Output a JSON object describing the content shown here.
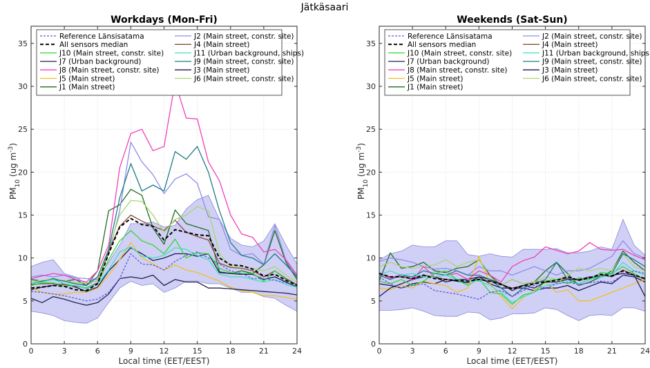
{
  "figure_title": "Jätkäsaari",
  "colors": {
    "reference": "#5b5bd6",
    "median": "#000000",
    "band": "#c8c8f4",
    "band_edge": "#8888dd",
    "J1": "#1f6b1f",
    "J2": "#8c8ce6",
    "J3": "#161650",
    "J4": "#8b4a3a",
    "J5": "#f0c020",
    "J6": "#a6d86a",
    "J7": "#20204a",
    "J8": "#f040b8",
    "J9": "#1d7a86",
    "J10": "#30d830",
    "J11": "#40e0c0"
  },
  "legend": {
    "left": [
      "Reference Länsisatama",
      "All sensors median",
      "J10 (Main street, constr. site)",
      "J7 (Urban background)",
      "J8 (Main street, constr. site)",
      "J5 (Main street)",
      "J1 (Main street)"
    ],
    "right": [
      "J2 (Main street, constr. site)",
      "J4 (Main street)",
      "J11 (Urban background, ships)",
      "J9 (Main street, constr. site)",
      "J3 (Main street)",
      "J6 (Main street, constr. site)"
    ]
  },
  "chart_data": [
    {
      "type": "line",
      "title": "Workdays (Mon-Fri)",
      "xlabel": "Local time (EET/EEST)",
      "ylabel": "PM10 (ug m-3)",
      "ylabel_main": "PM",
      "ylabel_sub": "10",
      "ylabel_unit": " (ug m",
      "ylabel_sup": "-3",
      "ylabel_close": ")",
      "xlim": [
        0,
        24
      ],
      "ylim": [
        0,
        37
      ],
      "xticks": [
        "0",
        "3",
        "6",
        "9",
        "12",
        "15",
        "18",
        "21",
        "24"
      ],
      "yticks": [
        "0",
        "5",
        "10",
        "15",
        "20",
        "25",
        "30",
        "35"
      ],
      "x": [
        0,
        1,
        2,
        3,
        4,
        5,
        6,
        7,
        8,
        9,
        10,
        11,
        12,
        13,
        14,
        15,
        16,
        17,
        18,
        19,
        20,
        21,
        22,
        23,
        24
      ],
      "band_lower": [
        3.8,
        3.6,
        3.3,
        2.7,
        2.5,
        2.4,
        3.0,
        4.8,
        6.5,
        7.3,
        6.8,
        7.0,
        6.0,
        6.5,
        7.3,
        7.3,
        7.0,
        7.0,
        6.5,
        6.0,
        6.0,
        5.5,
        5.3,
        4.5,
        3.8
      ],
      "band_upper": [
        9.0,
        9.5,
        9.8,
        8.2,
        7.8,
        7.0,
        7.8,
        9.5,
        11.5,
        14.0,
        14.0,
        14.2,
        13.6,
        13.8,
        15.7,
        16.8,
        17.3,
        14.5,
        12.3,
        11.5,
        11.3,
        12.0,
        14.0,
        11.5,
        9.3
      ],
      "series": [
        {
          "name": "Reference Länsisatama",
          "key": "reference",
          "dash": true,
          "values": [
            6.1,
            6.0,
            5.8,
            5.6,
            5.3,
            5.0,
            5.2,
            6.0,
            7.6,
            10.5,
            9.3,
            9.2,
            8.6,
            9.6,
            10.3,
            10.7,
            10.0,
            9.3,
            8.5,
            8.2,
            7.6,
            7.6,
            7.4,
            7.1,
            6.7
          ]
        },
        {
          "name": "All sensors median",
          "key": "median",
          "dash": true,
          "bold": true,
          "values": [
            6.5,
            6.6,
            6.8,
            6.7,
            6.3,
            6.2,
            7.0,
            10.5,
            13.6,
            14.6,
            13.9,
            13.7,
            12.1,
            13.3,
            13.0,
            12.7,
            12.6,
            10.0,
            9.2,
            9.1,
            8.7,
            7.9,
            8.1,
            7.4,
            6.8
          ]
        },
        {
          "name": "J1 (Main street)",
          "key": "J1",
          "values": [
            7.5,
            7.3,
            7.6,
            7.3,
            7.5,
            6.8,
            8.5,
            15.5,
            16.2,
            18.0,
            17.3,
            13.5,
            11.6,
            15.6,
            14.0,
            13.6,
            13.2,
            8.4,
            8.2,
            8.5,
            8.2,
            9.2,
            13.2,
            9.5,
            7.5
          ]
        },
        {
          "name": "J2 (Main street, constr. site)",
          "key": "J2",
          "values": [
            7.8,
            8.0,
            7.8,
            8.0,
            7.7,
            7.6,
            7.5,
            10.5,
            15.5,
            23.5,
            21.2,
            19.7,
            17.5,
            19.2,
            19.8,
            18.7,
            14.8,
            14.5,
            11.0,
            10.3,
            10.5,
            9.3,
            13.8,
            9.7,
            7.8
          ]
        },
        {
          "name": "J3 (Main street)",
          "key": "J3",
          "values": [
            6.3,
            6.6,
            6.8,
            7.0,
            6.6,
            6.1,
            6.6,
            8.5,
            9.8,
            11.2,
            10.5,
            9.7,
            10.0,
            10.5,
            10.5,
            10.2,
            10.5,
            8.3,
            8.2,
            8.1,
            8.1,
            7.5,
            7.8,
            7.2,
            6.6
          ]
        },
        {
          "name": "J4 (Main street)",
          "key": "J4",
          "values": [
            6.9,
            7.0,
            7.0,
            6.9,
            6.7,
            6.5,
            7.1,
            10.8,
            13.7,
            15.0,
            14.3,
            13.7,
            13.2,
            14.4,
            13.0,
            12.5,
            12.1,
            9.4,
            8.9,
            8.8,
            8.5,
            7.8,
            8.5,
            7.6,
            6.9
          ]
        },
        {
          "name": "J5 (Main street)",
          "key": "J5",
          "values": [
            6.6,
            6.0,
            5.8,
            5.8,
            6.0,
            6.0,
            6.5,
            8.0,
            9.8,
            11.8,
            10.0,
            9.3,
            8.6,
            9.2,
            8.6,
            8.3,
            7.8,
            7.3,
            6.6,
            6.2,
            6.0,
            5.6,
            5.6,
            5.4,
            5.2
          ]
        },
        {
          "name": "J6 (Main street, constr. site)",
          "key": "J6",
          "values": [
            7.2,
            7.4,
            7.5,
            7.4,
            7.1,
            7.1,
            7.3,
            11.0,
            15.0,
            16.7,
            16.6,
            15.0,
            13.0,
            14.5,
            15.0,
            16.0,
            15.5,
            10.5,
            9.0,
            9.0,
            8.8,
            8.5,
            9.0,
            8.0,
            7.2
          ]
        },
        {
          "name": "J7 (Urban background)",
          "key": "J7",
          "values": [
            5.3,
            4.8,
            5.5,
            5.2,
            4.8,
            4.5,
            4.8,
            5.8,
            7.6,
            7.8,
            7.6,
            8.0,
            6.8,
            7.5,
            7.2,
            7.2,
            6.5,
            6.5,
            6.4,
            6.3,
            6.2,
            6.1,
            6.0,
            5.9,
            5.7
          ]
        },
        {
          "name": "J8 (Main street, constr. site)",
          "key": "J8",
          "values": [
            7.6,
            7.9,
            8.2,
            8.0,
            7.5,
            7.2,
            8.5,
            11.5,
            20.5,
            24.5,
            25.0,
            22.5,
            23.0,
            30.5,
            26.3,
            26.2,
            21.2,
            19.0,
            15.0,
            12.8,
            12.4,
            10.7,
            11.0,
            9.8,
            8.0
          ]
        },
        {
          "name": "J9 (Main street, constr. site)",
          "key": "J9",
          "values": [
            7.0,
            7.3,
            7.5,
            7.3,
            7.0,
            6.8,
            7.8,
            11.0,
            17.0,
            21.0,
            17.8,
            18.5,
            17.8,
            22.4,
            21.5,
            23.0,
            20.0,
            15.5,
            11.8,
            10.3,
            10.0,
            9.2,
            10.5,
            9.2,
            7.8
          ]
        },
        {
          "name": "J10 (Main street, constr. site)",
          "key": "J10",
          "values": [
            6.8,
            7.1,
            7.1,
            6.7,
            6.8,
            6.5,
            7.0,
            9.8,
            12.0,
            13.2,
            12.0,
            11.5,
            10.5,
            12.2,
            10.0,
            10.6,
            10.5,
            8.8,
            8.3,
            8.2,
            8.2,
            7.3,
            8.5,
            7.5,
            6.8
          ]
        },
        {
          "name": "J11 (Urban background, ships)",
          "key": "J11",
          "values": [
            7.0,
            7.2,
            7.5,
            7.0,
            6.8,
            6.4,
            7.0,
            8.6,
            10.7,
            11.3,
            10.2,
            10.0,
            10.3,
            11.2,
            11.0,
            10.3,
            9.8,
            8.1,
            7.8,
            7.8,
            7.5,
            7.2,
            7.5,
            6.9,
            6.6
          ]
        }
      ]
    },
    {
      "type": "line",
      "title": "Weekends (Sat-Sun)",
      "xlabel": "Local time (EET/EEST)",
      "ylabel": "PM10 (ug m-3)",
      "ylabel_main": "PM",
      "ylabel_sub": "10",
      "ylabel_unit": " (ug m",
      "ylabel_sup": "-3",
      "ylabel_close": ")",
      "xlim": [
        0,
        24
      ],
      "ylim": [
        0,
        37
      ],
      "xticks": [
        "0",
        "3",
        "6",
        "9",
        "12",
        "15",
        "18",
        "21",
        "24"
      ],
      "yticks": [
        "0",
        "5",
        "10",
        "15",
        "20",
        "25",
        "30",
        "35"
      ],
      "x": [
        0,
        1,
        2,
        3,
        4,
        5,
        6,
        7,
        8,
        9,
        10,
        11,
        12,
        13,
        14,
        15,
        16,
        17,
        18,
        19,
        20,
        21,
        22,
        23,
        24
      ],
      "band_lower": [
        3.9,
        3.9,
        4.0,
        4.2,
        3.8,
        3.3,
        3.2,
        3.2,
        3.7,
        3.6,
        2.8,
        3.0,
        3.5,
        3.5,
        3.6,
        4.2,
        4.0,
        3.3,
        2.7,
        3.3,
        3.4,
        3.3,
        4.2,
        4.2,
        3.8
      ],
      "band_upper": [
        9.8,
        10.5,
        10.8,
        11.5,
        11.3,
        11.3,
        12.0,
        12.0,
        10.4,
        10.2,
        10.5,
        10.2,
        10.1,
        11.0,
        11.0,
        11.0,
        11.1,
        10.6,
        10.6,
        10.8,
        11.3,
        11.0,
        14.5,
        11.5,
        10.3
      ],
      "series": [
        {
          "name": "Reference Länsisatama",
          "key": "reference",
          "dash": true,
          "values": [
            7.8,
            7.0,
            6.5,
            6.8,
            7.0,
            6.2,
            6.0,
            5.8,
            5.5,
            5.2,
            6.0,
            6.2,
            5.5,
            6.2,
            6.8,
            6.5,
            7.0,
            7.2,
            6.9,
            7.1,
            7.3,
            7.2,
            8.0,
            8.5,
            8.2
          ]
        },
        {
          "name": "All sensors median",
          "key": "median",
          "dash": true,
          "bold": true,
          "values": [
            8.2,
            7.8,
            7.8,
            7.6,
            8.0,
            7.6,
            7.5,
            7.4,
            7.3,
            7.5,
            7.3,
            6.9,
            6.4,
            6.8,
            7.0,
            7.2,
            7.4,
            7.8,
            7.4,
            7.7,
            8.1,
            7.9,
            8.5,
            8.0,
            7.6
          ]
        },
        {
          "name": "J1 (Main street)",
          "key": "J1",
          "values": [
            7.3,
            10.6,
            8.8,
            9.0,
            9.5,
            8.5,
            8.3,
            8.8,
            9.0,
            9.8,
            8.0,
            6.8,
            7.5,
            7.0,
            7.2,
            8.5,
            9.5,
            8.2,
            6.8,
            7.2,
            7.8,
            8.5,
            10.8,
            9.5,
            8.5
          ]
        },
        {
          "name": "J2 (Main street, constr. site)",
          "key": "J2",
          "values": [
            9.6,
            10.0,
            9.8,
            9.5,
            9.0,
            8.7,
            8.8,
            8.5,
            8.0,
            9.0,
            8.5,
            8.5,
            8.0,
            8.5,
            9.0,
            8.5,
            8.0,
            8.5,
            8.5,
            8.8,
            9.5,
            10.2,
            12.0,
            10.5,
            10.0
          ]
        },
        {
          "name": "J3 (Main street)",
          "key": "J3",
          "values": [
            7.0,
            6.8,
            6.5,
            7.0,
            7.2,
            7.0,
            7.5,
            7.3,
            7.1,
            7.8,
            7.0,
            6.5,
            6.5,
            6.5,
            6.2,
            6.5,
            6.5,
            6.8,
            6.2,
            6.7,
            7.2,
            7.0,
            8.0,
            7.8,
            7.2
          ]
        },
        {
          "name": "J4 (Main street)",
          "key": "J4",
          "values": [
            8.1,
            7.8,
            7.8,
            7.6,
            8.0,
            7.8,
            7.5,
            7.4,
            7.3,
            7.5,
            7.3,
            6.9,
            6.5,
            6.8,
            7.2,
            7.3,
            7.5,
            7.6,
            7.4,
            7.6,
            8.0,
            7.8,
            8.6,
            8.0,
            7.5
          ]
        },
        {
          "name": "J5 (Main street)",
          "key": "J5",
          "values": [
            6.5,
            6.3,
            6.8,
            6.5,
            7.3,
            7.0,
            6.8,
            6.0,
            6.5,
            10.2,
            7.0,
            5.5,
            4.1,
            5.4,
            6.2,
            7.2,
            6.0,
            6.3,
            5.0,
            5.0,
            5.5,
            6.0,
            6.5,
            7.0,
            7.5
          ]
        },
        {
          "name": "J6 (Main street, constr. site)",
          "key": "J6",
          "values": [
            9.0,
            9.5,
            9.0,
            8.8,
            9.0,
            9.2,
            9.8,
            9.0,
            9.5,
            9.8,
            7.8,
            6.8,
            7.5,
            7.0,
            7.2,
            7.8,
            7.5,
            8.0,
            8.8,
            8.5,
            8.8,
            8.5,
            10.5,
            9.0,
            8.5
          ]
        },
        {
          "name": "J7 (Urban background)",
          "key": "J7",
          "values": [
            5.5,
            6.5,
            7.0,
            7.5,
            7.8,
            7.8,
            7.2,
            7.5,
            7.5,
            7.8,
            7.5,
            7.0,
            6.2,
            6.8,
            6.5,
            7.2,
            7.2,
            7.5,
            7.5,
            7.8,
            7.8,
            8.0,
            8.2,
            8.0,
            5.5
          ]
        },
        {
          "name": "J8 (Main street, constr. site)",
          "key": "J8",
          "values": [
            8.3,
            7.6,
            8.1,
            7.4,
            9.0,
            7.8,
            8.0,
            8.2,
            7.5,
            8.5,
            8.0,
            7.2,
            9.0,
            9.7,
            10.1,
            11.3,
            10.9,
            10.5,
            10.8,
            11.8,
            11.0,
            10.9,
            11.0,
            10.3,
            9.8
          ]
        },
        {
          "name": "J9 (Main street, constr. site)",
          "key": "J9",
          "values": [
            8.0,
            7.5,
            8.0,
            7.8,
            8.5,
            8.2,
            8.0,
            8.5,
            8.0,
            8.0,
            7.5,
            6.5,
            5.5,
            6.5,
            7.0,
            7.5,
            9.5,
            7.5,
            7.0,
            7.5,
            8.0,
            8.2,
            10.5,
            9.8,
            9.0
          ]
        },
        {
          "name": "J10 (Main street, constr. site)",
          "key": "J10",
          "values": [
            7.3,
            7.0,
            7.5,
            6.8,
            7.3,
            8.2,
            8.5,
            7.5,
            6.8,
            7.6,
            6.0,
            5.8,
            4.6,
            5.7,
            6.0,
            7.3,
            7.5,
            7.0,
            7.7,
            7.5,
            8.3,
            8.2,
            9.0,
            8.2,
            7.5
          ]
        },
        {
          "name": "J11 (Urban background, ships)",
          "key": "J11",
          "values": [
            8.0,
            8.5,
            8.0,
            8.2,
            7.8,
            7.8,
            8.0,
            7.5,
            7.3,
            7.3,
            6.8,
            6.0,
            4.8,
            5.5,
            6.0,
            6.8,
            7.0,
            7.2,
            7.0,
            7.5,
            7.8,
            8.0,
            9.5,
            8.5,
            8.0
          ]
        }
      ]
    }
  ]
}
